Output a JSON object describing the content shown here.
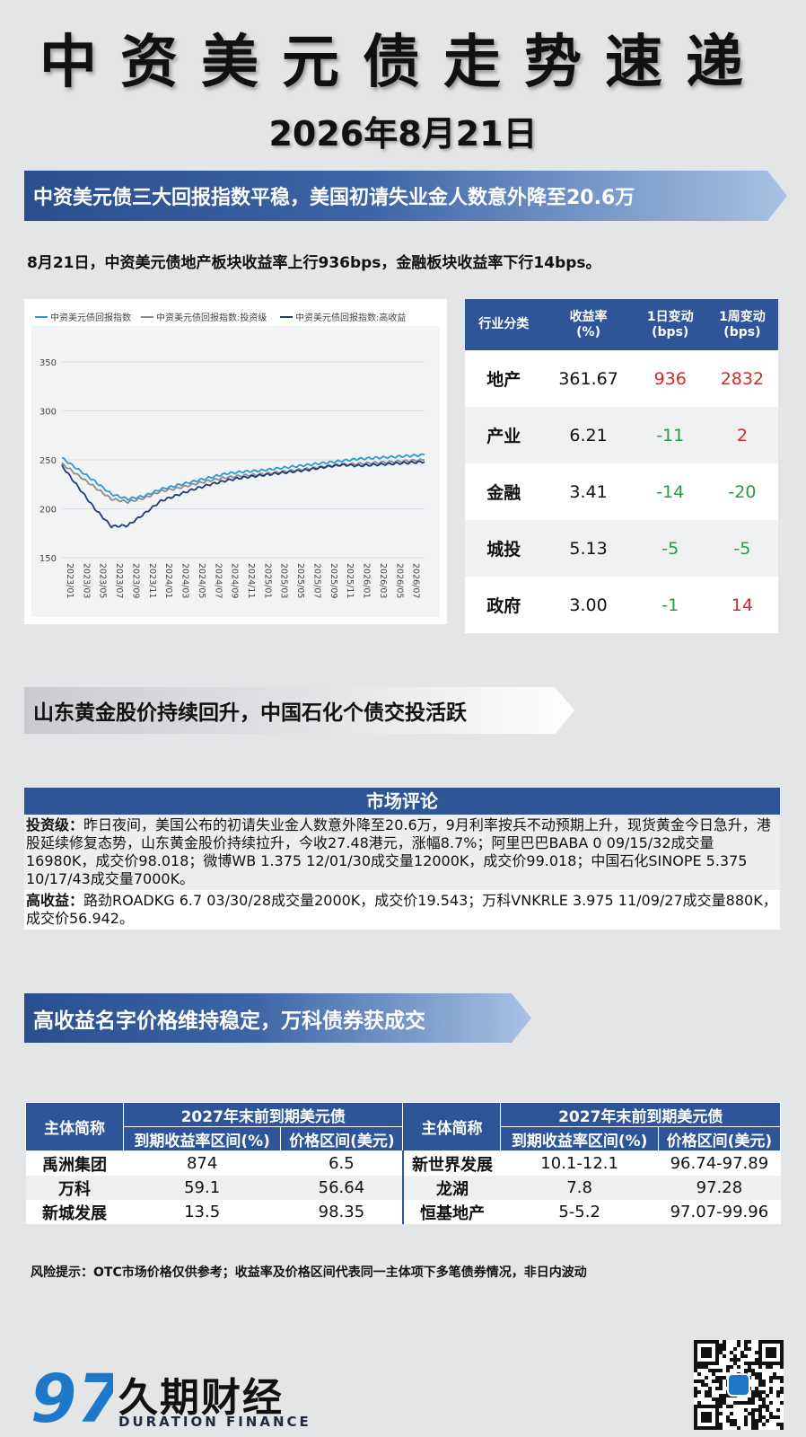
{
  "title": "中资美元债走势速递",
  "date": "2026年8月21日",
  "sections": {
    "s1": "中资美元债三大回报指数平稳，美国初请失业金人数意外降至20.6万",
    "s2": "山东黄金股价持续回升，中国石化个债交投活跃",
    "s3": "高收益名字价格维持稳定，万科债券获成交"
  },
  "summary": "8月21日，中资美元债地产板块收益率上行936bps，金融板块收益率下行14bps。",
  "chart_data": {
    "type": "line",
    "title": "",
    "xlabel": "",
    "ylabel": "",
    "ylim": [
      150,
      350
    ],
    "yticks": [
      150,
      200,
      250,
      300,
      350
    ],
    "x_ticks": [
      "2023/01",
      "2023/03",
      "2023/05",
      "2023/07",
      "2023/09",
      "2023/11",
      "2024/01",
      "2024/03",
      "2024/05",
      "2024/07",
      "2024/09",
      "2024/11",
      "2025/01",
      "2025/03",
      "2025/05",
      "2025/07",
      "2025/09",
      "2025/11",
      "2026/01",
      "2026/03",
      "2026/05",
      "2026/07"
    ],
    "grid": "horizontal",
    "legend": "top",
    "x": [
      "2023/01",
      "2023/03",
      "2023/05",
      "2023/07",
      "2023/09",
      "2023/11",
      "2024/01",
      "2024/03",
      "2024/05",
      "2024/07",
      "2024/09",
      "2024/11",
      "2025/01",
      "2025/03",
      "2025/05",
      "2025/07",
      "2025/09",
      "2025/11",
      "2026/01",
      "2026/03",
      "2026/05",
      "2026/07",
      "2026/08"
    ],
    "series": [
      {
        "name": "中资美元债回报指数",
        "color": "#2b9bd6",
        "values": [
          252,
          240,
          228,
          215,
          210,
          213,
          220,
          224,
          228,
          232,
          236,
          238,
          239,
          241,
          243,
          245,
          247,
          249,
          251,
          252,
          253,
          254,
          255
        ]
      },
      {
        "name": "中资美元债回报指数:投资级",
        "color": "#8c8c8c",
        "values": [
          246,
          234,
          222,
          210,
          207,
          211,
          218,
          221,
          225,
          229,
          232,
          234,
          235,
          237,
          239,
          241,
          243,
          245,
          246,
          247,
          248,
          249,
          250
        ]
      },
      {
        "name": "中资美元债回报指数:高收益",
        "color": "#1f3b78",
        "values": [
          244,
          222,
          200,
          182,
          183,
          195,
          208,
          214,
          220,
          225,
          229,
          232,
          234,
          236,
          238,
          240,
          243,
          245,
          244,
          245,
          246,
          247,
          248
        ]
      }
    ]
  },
  "sector_table": {
    "headers": [
      "行业分类",
      "收益率\n(%)",
      "1日变动\n(bps)",
      "1周变动\n(bps)"
    ],
    "rows": [
      {
        "name": "地产",
        "yield": "361.67",
        "d1": "936",
        "w1": "2832",
        "d1c": "pos",
        "w1c": "pos"
      },
      {
        "name": "产业",
        "yield": "6.21",
        "d1": "-11",
        "w1": "2",
        "d1c": "neg",
        "w1c": "pos"
      },
      {
        "name": "金融",
        "yield": "3.41",
        "d1": "-14",
        "w1": "-20",
        "d1c": "neg",
        "w1c": "neg"
      },
      {
        "name": "城投",
        "yield": "5.13",
        "d1": "-5",
        "w1": "-5",
        "d1c": "neg",
        "w1c": "neg"
      },
      {
        "name": "政府",
        "yield": "3.00",
        "d1": "-1",
        "w1": "14",
        "d1c": "neg",
        "w1c": "pos"
      }
    ]
  },
  "commentary": {
    "heading": "市场评论",
    "ig_label": "投资级：",
    "ig_text": "昨日夜间，美国公布的初请失业金人数意外降至20.6万，9月利率按兵不动预期上升，现货黄金今日急升，港股延续修复态势，山东黄金股价持续拉升，今收27.48港元，涨幅8.7%；阿里巴巴BABA 0 09/15/32成交量16980K，成交价98.018；微博WB 1.375 12/01/30成交量12000K，成交价99.018；中国石化SINOPE 5.375 10/17/43成交量7000K。",
    "hy_label": "高收益：",
    "hy_text": "路劲ROADKG 6.7 03/30/28成交量2000K，成交价19.543；万科VNKRLE 3.975 11/09/27成交量880K，成交价56.942。"
  },
  "hy_table": {
    "name_header": "主体简称",
    "group_header": "2027年末前到期美元债",
    "sub_headers": [
      "到期收益率区间(%)",
      "价格区间(美元)"
    ],
    "left": [
      {
        "name": "禹洲集团",
        "yield": "874",
        "price": "6.5"
      },
      {
        "name": "万科",
        "yield": "59.1",
        "price": "56.64"
      },
      {
        "name": "新城发展",
        "yield": "13.5",
        "price": "98.35"
      }
    ],
    "right": [
      {
        "name": "新世界发展",
        "yield": "10.1-12.1",
        "price": "96.74-97.89"
      },
      {
        "name": "龙湖",
        "yield": "7.8",
        "price": "97.28"
      },
      {
        "name": "恒基地产",
        "yield": "5-5.2",
        "price": "97.07-99.96"
      }
    ]
  },
  "risk_note": "风险提示：OTC市场价格仅供参考；收益率及价格区间代表同一主体项下多笔债券情况，非日内波动",
  "brand": {
    "cn": "久期财经",
    "en": "DURATION FINANCE",
    "mark": "97"
  }
}
